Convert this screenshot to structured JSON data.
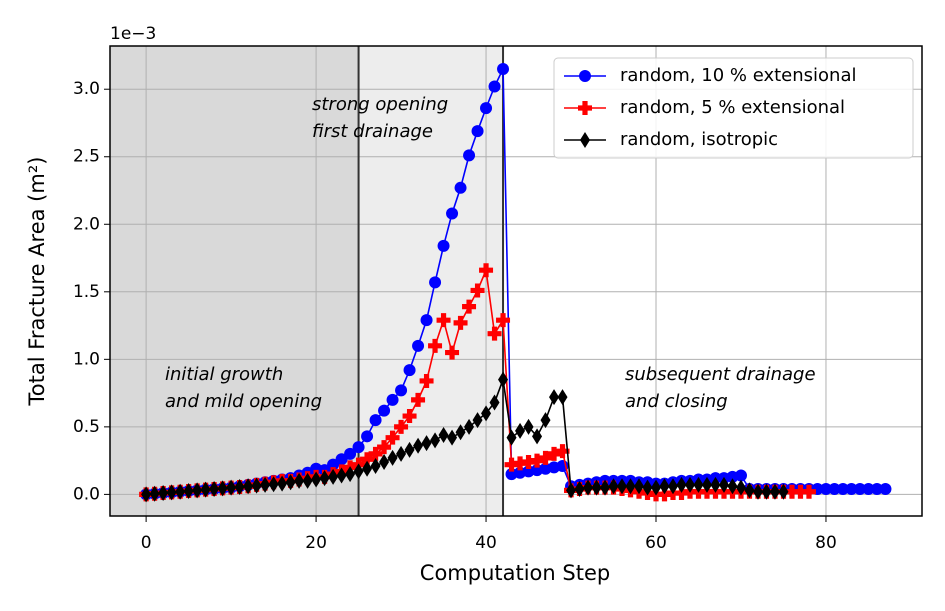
{
  "chart_data": {
    "type": "line",
    "xlabel": "Computation Step",
    "ylabel": "Total Fracture Area (m²)",
    "offset_text": "1e−3",
    "xlim": [
      -4.25,
      91.3
    ],
    "ylim": [
      -0.16,
      3.32
    ],
    "xticks": [
      0,
      20,
      40,
      60,
      80
    ],
    "yticks": [
      {
        "value": 0,
        "label": "0.0"
      },
      0.5,
      {
        "value": 1,
        "label": "1.0"
      },
      1.5,
      {
        "value": 2,
        "label": "2.0"
      },
      2.5,
      {
        "value": 3,
        "label": "3.0"
      }
    ],
    "grid": true,
    "legend": "upper right",
    "spans": [
      {
        "x0": -4.25,
        "x1": 25,
        "color": "#d9d9d9"
      },
      {
        "x0": 25,
        "x1": 42,
        "color": "#ededed"
      }
    ],
    "annotations": [
      [
        "initial growth",
        "and mild opening"
      ],
      [
        "strong opening",
        "first drainage"
      ],
      [
        "subsequent drainage",
        "and closing"
      ]
    ],
    "series": [
      {
        "name": "random, 10 % extensional",
        "color": "#0000ff",
        "marker": "circle",
        "x": [
          0,
          1,
          2,
          3,
          4,
          5,
          6,
          7,
          8,
          9,
          10,
          11,
          12,
          13,
          14,
          15,
          16,
          17,
          18,
          19,
          20,
          21,
          22,
          23,
          24,
          25,
          26,
          27,
          28,
          29,
          30,
          31,
          32,
          33,
          34,
          35,
          36,
          37,
          38,
          39,
          40,
          41,
          42,
          43,
          44,
          45,
          46,
          47,
          48,
          49,
          50,
          51,
          52,
          53,
          54,
          55,
          56,
          57,
          58,
          59,
          60,
          61,
          62,
          63,
          64,
          65,
          66,
          67,
          68,
          69,
          70,
          71,
          72,
          73,
          74,
          75,
          76,
          77,
          78,
          79,
          80,
          81,
          82,
          83,
          84,
          85,
          86,
          87
        ],
        "values": [
          0,
          0.005,
          0.01,
          0.015,
          0.02,
          0.025,
          0.03,
          0.035,
          0.04,
          0.045,
          0.05,
          0.06,
          0.07,
          0.08,
          0.09,
          0.1,
          0.11,
          0.12,
          0.14,
          0.16,
          0.19,
          0.18,
          0.22,
          0.26,
          0.3,
          0.35,
          0.43,
          0.55,
          0.62,
          0.7,
          0.77,
          0.92,
          1.1,
          1.29,
          1.57,
          1.84,
          2.08,
          2.27,
          2.51,
          2.69,
          2.86,
          3.02,
          3.15,
          0.15,
          0.16,
          0.17,
          0.18,
          0.19,
          0.2,
          0.21,
          0.06,
          0.07,
          0.08,
          0.09,
          0.1,
          0.1,
          0.1,
          0.1,
          0.09,
          0.09,
          0.08,
          0.08,
          0.09,
          0.1,
          0.1,
          0.11,
          0.11,
          0.12,
          0.12,
          0.13,
          0.14,
          0.04,
          0.04,
          0.04,
          0.04,
          0.04,
          0.04,
          0.04,
          0.04,
          0.04,
          0.04,
          0.04,
          0.04,
          0.04,
          0.04,
          0.04,
          0.04,
          0.04
        ]
      },
      {
        "name": "random, 5 % extensional",
        "color": "#ff0000",
        "marker": "plus",
        "x": [
          0,
          1,
          2,
          3,
          4,
          5,
          6,
          7,
          8,
          9,
          10,
          11,
          12,
          13,
          14,
          15,
          16,
          17,
          18,
          19,
          20,
          21,
          22,
          23,
          24,
          25,
          26,
          27,
          28,
          29,
          30,
          31,
          32,
          33,
          34,
          35,
          36,
          37,
          38,
          39,
          40,
          41,
          42,
          43,
          44,
          45,
          46,
          47,
          48,
          49,
          50,
          51,
          52,
          53,
          54,
          55,
          56,
          57,
          58,
          59,
          60,
          61,
          62,
          63,
          64,
          65,
          66,
          67,
          68,
          69,
          70,
          71,
          72,
          73,
          74,
          75,
          76,
          77,
          78
        ],
        "values": [
          0,
          0.005,
          0.01,
          0.015,
          0.02,
          0.025,
          0.03,
          0.035,
          0.04,
          0.045,
          0.05,
          0.055,
          0.06,
          0.07,
          0.08,
          0.09,
          0.1,
          0.1,
          0.11,
          0.12,
          0.13,
          0.13,
          0.15,
          0.17,
          0.2,
          0.22,
          0.26,
          0.3,
          0.35,
          0.42,
          0.5,
          0.58,
          0.7,
          0.84,
          1.1,
          1.29,
          1.05,
          1.27,
          1.39,
          1.51,
          1.66,
          1.19,
          1.29,
          0.22,
          0.23,
          0.24,
          0.25,
          0.27,
          0.3,
          0.32,
          0.03,
          0.04,
          0.05,
          0.05,
          0.05,
          0.05,
          0.04,
          0.03,
          0.02,
          0.01,
          0,
          0,
          0.01,
          0.01,
          0.02,
          0.02,
          0.02,
          0.02,
          0.02,
          0.02,
          0.02,
          0.02,
          0.02,
          0.02,
          0.02,
          0.02,
          0.02,
          0.02,
          0.02
        ]
      },
      {
        "name": "random, isotropic",
        "color": "#000000",
        "marker": "diamond",
        "x": [
          0,
          1,
          2,
          3,
          4,
          5,
          6,
          7,
          8,
          9,
          10,
          11,
          12,
          13,
          14,
          15,
          16,
          17,
          18,
          19,
          20,
          21,
          22,
          23,
          24,
          25,
          26,
          27,
          28,
          29,
          30,
          31,
          32,
          33,
          34,
          35,
          36,
          37,
          38,
          39,
          40,
          41,
          42,
          43,
          44,
          45,
          46,
          47,
          48,
          49,
          50,
          51,
          52,
          53,
          54,
          55,
          56,
          57,
          58,
          59,
          60,
          61,
          62,
          63,
          64,
          65,
          66,
          67,
          68,
          69,
          70,
          71,
          72,
          73,
          74,
          75
        ],
        "values": [
          0,
          0.005,
          0.01,
          0.015,
          0.02,
          0.025,
          0.03,
          0.035,
          0.04,
          0.045,
          0.05,
          0.055,
          0.06,
          0.065,
          0.07,
          0.075,
          0.08,
          0.09,
          0.1,
          0.1,
          0.11,
          0.12,
          0.13,
          0.14,
          0.15,
          0.17,
          0.19,
          0.21,
          0.24,
          0.27,
          0.3,
          0.33,
          0.36,
          0.38,
          0.4,
          0.44,
          0.42,
          0.46,
          0.5,
          0.55,
          0.6,
          0.68,
          0.85,
          0.42,
          0.47,
          0.5,
          0.43,
          0.55,
          0.72,
          0.72,
          0.03,
          0.04,
          0.05,
          0.05,
          0.05,
          0.06,
          0.06,
          0.06,
          0.06,
          0.05,
          0.05,
          0.06,
          0.06,
          0.07,
          0.07,
          0.07,
          0.07,
          0.07,
          0.07,
          0.06,
          0.05,
          0.03,
          0.02,
          0.02,
          0.02,
          0.02
        ]
      }
    ]
  }
}
